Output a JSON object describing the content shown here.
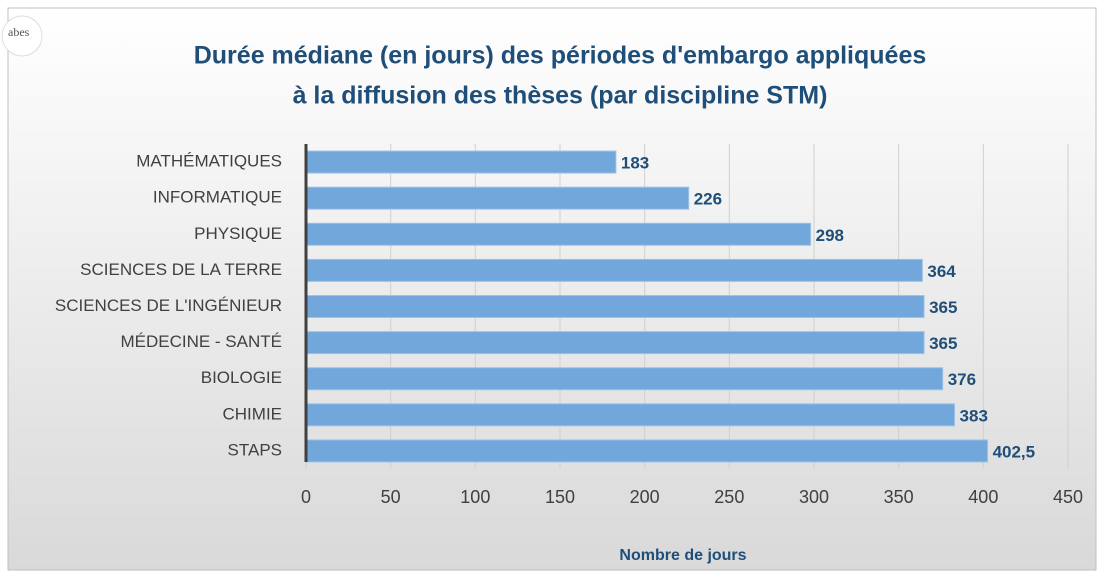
{
  "logo": "abes",
  "chart_data": {
    "type": "bar",
    "orientation": "horizontal",
    "title": [
      "Durée médiane (en jours) des périodes d'embargo  appliquées",
      "à la diffusion des thèses (par discipline STM)"
    ],
    "xlabel": "Nombre de jours",
    "categories": [
      "MATHÉMATIQUES",
      "INFORMATIQUE",
      "PHYSIQUE",
      "SCIENCES DE LA TERRE",
      "SCIENCES DE L'INGÉNIEUR",
      "MÉDECINE - SANTÉ",
      "BIOLOGIE",
      "CHIMIE",
      "STAPS"
    ],
    "values": [
      183,
      226,
      298,
      364,
      365,
      365,
      376,
      383,
      402.5
    ],
    "value_labels": [
      "183",
      "226",
      "298",
      "364",
      "365",
      "365",
      "376",
      "383",
      "402,5"
    ],
    "color": "#72a7dc",
    "xlim": [
      0,
      450
    ],
    "xticks": [
      0,
      50,
      100,
      150,
      200,
      250,
      300,
      350,
      400,
      450
    ],
    "grid": true
  }
}
